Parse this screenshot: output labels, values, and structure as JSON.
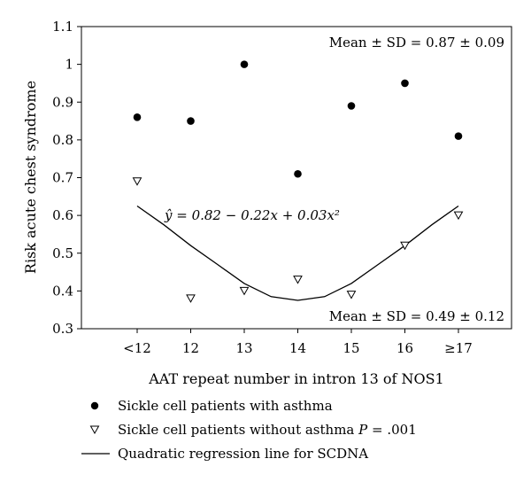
{
  "chart_data": {
    "type": "scatter",
    "xlabel": "AAT repeat number in intron 13 of NOS1",
    "ylabel": "Risk acute chest syndrome",
    "categories": [
      "<12",
      "12",
      "13",
      "14",
      "15",
      "16",
      "≥17"
    ],
    "x_numeric": [
      11,
      12,
      13,
      14,
      15,
      16,
      17
    ],
    "ylim": [
      0.3,
      1.1
    ],
    "yticks": [
      "0.3",
      "0.4",
      "0.5",
      "0.6",
      "0.7",
      "0.8",
      "0.9",
      "1",
      "1.1"
    ],
    "ytick_values": [
      0.3,
      0.4,
      0.5,
      0.6,
      0.7,
      0.8,
      0.9,
      1.0,
      1.1
    ],
    "grid": false,
    "series": [
      {
        "name": "Sickle cell patients with asthma",
        "marker": "filled-circle",
        "values": [
          0.86,
          0.85,
          1.0,
          0.71,
          0.89,
          0.95,
          0.81
        ]
      },
      {
        "name": "Sickle cell patients without asthma",
        "name_suffix": "P = .001",
        "marker": "open-triangle-down",
        "values": [
          0.69,
          0.38,
          0.4,
          0.43,
          0.39,
          0.52,
          0.6
        ]
      }
    ],
    "regression": {
      "name": "Quadratic regression line for SCDNA",
      "equation": "ŷ = 0.82 − 0.22x + 0.03x²",
      "x_range": [
        11,
        17
      ],
      "points": [
        [
          11,
          0.625
        ],
        [
          11.5,
          0.575
        ],
        [
          12,
          0.52
        ],
        [
          12.5,
          0.47
        ],
        [
          13,
          0.42
        ],
        [
          13.5,
          0.385
        ],
        [
          14,
          0.375
        ],
        [
          14.5,
          0.385
        ],
        [
          15,
          0.42
        ],
        [
          15.5,
          0.47
        ],
        [
          16,
          0.52
        ],
        [
          16.5,
          0.575
        ],
        [
          17,
          0.625
        ]
      ]
    },
    "annotations": {
      "asthma_mean": "Mean ± SD = 0.87 ± 0.09",
      "no_asthma_mean": "Mean ± SD = 0.49 ± 0.12"
    },
    "legend": {
      "placement": "bottom",
      "items": [
        {
          "label": "Sickle cell patients with asthma"
        },
        {
          "label": "Sickle cell patients without asthma",
          "p_label": "P",
          "p_value": " = .001"
        },
        {
          "label": "Quadratic regression line for SCDNA"
        }
      ]
    }
  }
}
